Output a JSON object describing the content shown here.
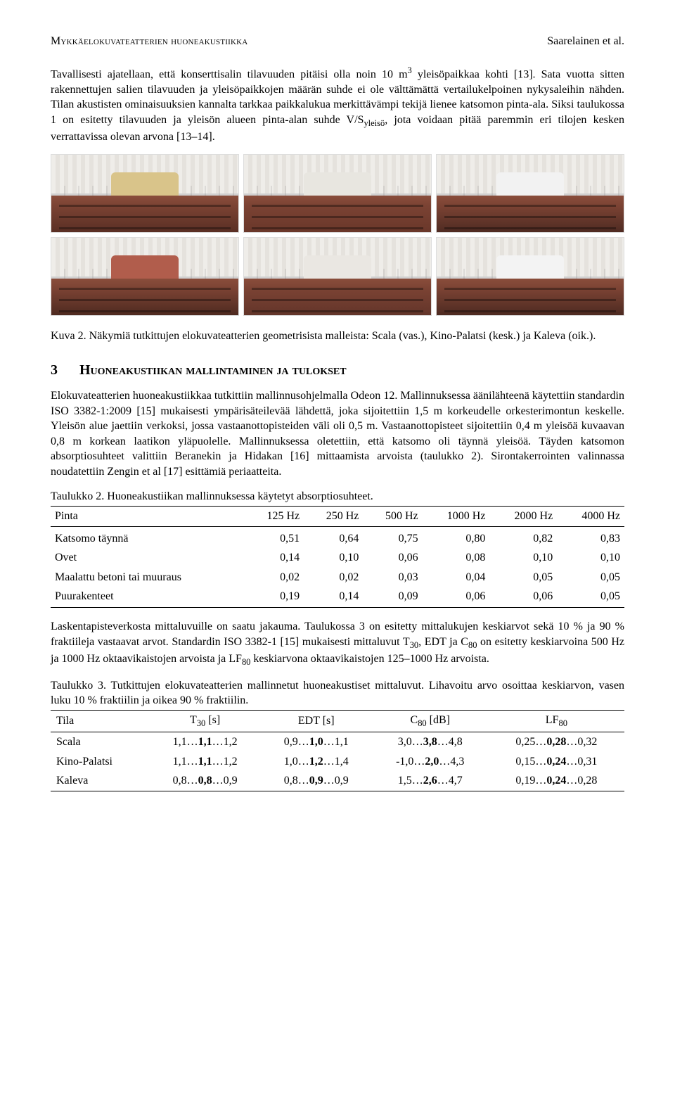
{
  "header": {
    "left": "Mykkäelokuvateatterien huoneakustiikka",
    "right": "Saarelainen et al."
  },
  "para1_html": "Tavallisesti ajatellaan, että konserttisalin tilavuuden pitäisi olla noin 10 m<span class='sup'>3</span> yleisöpaikkaa kohti [13]. Sata vuotta sitten rakennettujen salien tilavuuden ja yleisöpaikkojen määrän suhde ei ole välttämättä vertailukelpoinen nykysaleihin nähden. Tilan akustisten ominaisuuksien kannalta tarkkaa paikkalukua merkittävämpi tekijä lienee katsomon pinta-ala. Siksi taulukossa 1 on esitetty tilavuuden ja yleisön alueen pinta-alan suhde V/S<span class='sub'>yleisö</span>, jota voidaan pitää paremmin eri tilojen kesken verrattavissa olevan arvona [13–14].",
  "figure": {
    "cells": [
      {
        "backwall_color": "#d9c48a",
        "floor_color": "#5a2f24"
      },
      {
        "backwall_color": "#e8e6e0",
        "floor_color": "#6a372a"
      },
      {
        "backwall_color": "#f2f2f2",
        "floor_color": "#4f2b22"
      },
      {
        "backwall_color": "#b15d4c",
        "floor_color": "#4e2a20"
      },
      {
        "backwall_color": "#eae7e2",
        "floor_color": "#63352a"
      },
      {
        "backwall_color": "#f3f3f3",
        "floor_color": "#4d2a21"
      }
    ],
    "caption_html": "Kuva 2. Näkymiä tutkittujen elokuvateatterien geometrisista malleista: Scala (vas.), Kino-Palatsi (kesk.) ja Kaleva (oik.)."
  },
  "section3": {
    "number": "3",
    "title": "Huoneakustiikan mallintaminen ja tulokset"
  },
  "para2_html": "Elokuvateatterien huoneakustiikkaa tutkittiin mallinnusohjelmalla Odeon 12. Mallinnuksessa äänilähteenä käytettiin standardin ISO 3382-1:2009 [15] mukaisesti ympärisäteilevää lähdettä, joka sijoitettiin 1,5 m korkeudelle orkesterimontun keskelle. Yleisön alue jaettiin verkoksi, jossa vastaanottopisteiden väli oli 0,5 m. Vastaanottopisteet sijoitettiin 0,4 m yleisöä kuvaavan 0,8 m korkean laatikon yläpuolelle. Mallinnuksessa oletettiin, että katsomo oli täynnä yleisöä. Täyden katsomon absorptiosuhteet valittiin Beranekin ja Hidakan [16] mittaamista arvoista (taulukko 2). Sirontakerrointen valinnassa noudatettiin Zengin et al [17] esittämiä periaatteita.",
  "table2": {
    "caption": "Taulukko 2. Huoneakustiikan mallinnuksessa käytetyt absorptiosuhteet.",
    "columns": [
      "Pinta",
      "125 Hz",
      "250 Hz",
      "500 Hz",
      "1000 Hz",
      "2000 Hz",
      "4000 Hz"
    ],
    "rows": [
      [
        "Katsomo täynnä",
        "0,51",
        "0,64",
        "0,75",
        "0,80",
        "0,82",
        "0,83"
      ],
      [
        "Ovet",
        "0,14",
        "0,10",
        "0,06",
        "0,08",
        "0,10",
        "0,10"
      ],
      [
        "Maalattu betoni tai muuraus",
        "0,02",
        "0,02",
        "0,03",
        "0,04",
        "0,05",
        "0,05"
      ],
      [
        "Puurakenteet",
        "0,19",
        "0,14",
        "0,09",
        "0,06",
        "0,06",
        "0,05"
      ]
    ]
  },
  "para3_html": "Laskentapisteverkosta mittaluvuille on saatu jakauma. Taulukossa 3 on esitetty mittalukujen keskiarvot sekä 10 % ja 90 % fraktiileja vastaavat arvot. Standardin ISO 3382-1 [15] mukaisesti mittaluvut T<span class='sub'>30</span>, EDT ja C<span class='sub'>80</span> on esitetty keskiarvoina 500 Hz ja 1000 Hz oktaavikaistojen arvoista ja LF<span class='sub'>80</span> keskiarvona oktaavikaistojen 125–1000 Hz arvoista.",
  "table3": {
    "caption": "Taulukko 3. Tutkittujen elokuvateatterien mallinnetut huoneakustiset mittaluvut. Lihavoitu arvo osoittaa keskiarvon, vasen luku 10 % fraktiilin ja oikea 90 % fraktiilin.",
    "columns_html": [
      "Tila",
      "T<span class='sub'>30</span> [s]",
      "EDT [s]",
      "C<span class='sub'>80</span> [dB]",
      "LF<span class='sub'>80</span>"
    ],
    "rows": [
      {
        "tila": "Scala",
        "t30": {
          "lo": "1,1",
          "mid": "1,1",
          "hi": "1,2"
        },
        "edt": {
          "lo": "0,9",
          "mid": "1,0",
          "hi": "1,1"
        },
        "c80": {
          "lo": "3,0",
          "mid": "3,8",
          "hi": "4,8"
        },
        "lf80": {
          "lo": "0,25",
          "mid": "0,28",
          "hi": "0,32"
        }
      },
      {
        "tila": "Kino-Palatsi",
        "t30": {
          "lo": "1,1",
          "mid": "1,1",
          "hi": "1,2"
        },
        "edt": {
          "lo": "1,0",
          "mid": "1,2",
          "hi": "1,4"
        },
        "c80": {
          "lo": "-1,0",
          "mid": "2,0",
          "hi": "4,3"
        },
        "lf80": {
          "lo": "0,15",
          "mid": "0,24",
          "hi": "0,31"
        }
      },
      {
        "tila": "Kaleva",
        "t30": {
          "lo": "0,8",
          "mid": "0,8",
          "hi": "0,9"
        },
        "edt": {
          "lo": "0,8",
          "mid": "0,9",
          "hi": "0,9"
        },
        "c80": {
          "lo": "1,5",
          "mid": "2,6",
          "hi": "4,7"
        },
        "lf80": {
          "lo": "0,19",
          "mid": "0,24",
          "hi": "0,28"
        }
      }
    ]
  }
}
